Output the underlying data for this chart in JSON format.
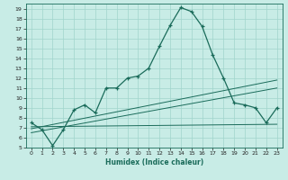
{
  "title": "",
  "xlabel": "Humidex (Indice chaleur)",
  "bg_color": "#c8ece6",
  "grid_color": "#a0d4cc",
  "line_color": "#1a6b5a",
  "xlim": [
    -0.5,
    23.5
  ],
  "ylim": [
    5,
    19.5
  ],
  "xticks": [
    0,
    1,
    2,
    3,
    4,
    5,
    6,
    7,
    8,
    9,
    10,
    11,
    12,
    13,
    14,
    15,
    16,
    17,
    18,
    19,
    20,
    21,
    22,
    23
  ],
  "yticks": [
    5,
    6,
    7,
    8,
    9,
    10,
    11,
    12,
    13,
    14,
    15,
    16,
    17,
    18,
    19
  ],
  "line1_x": [
    0,
    1,
    2,
    3,
    4,
    5,
    6,
    7,
    8,
    9,
    10,
    11,
    12,
    13,
    14,
    15,
    16,
    17,
    18,
    19,
    20,
    21,
    22,
    23
  ],
  "line1_y": [
    7.5,
    6.8,
    5.2,
    6.8,
    8.8,
    9.3,
    8.5,
    11.0,
    11.0,
    12.0,
    12.2,
    13.0,
    15.2,
    17.3,
    19.1,
    18.7,
    17.2,
    14.3,
    12.0,
    9.5,
    9.3,
    9.0,
    7.5,
    9.0
  ],
  "line2_x": [
    0,
    23
  ],
  "line2_y": [
    6.9,
    11.8
  ],
  "line3_x": [
    0,
    23
  ],
  "line3_y": [
    7.1,
    7.35
  ],
  "line4_x": [
    0,
    23
  ],
  "line4_y": [
    6.5,
    11.0
  ]
}
